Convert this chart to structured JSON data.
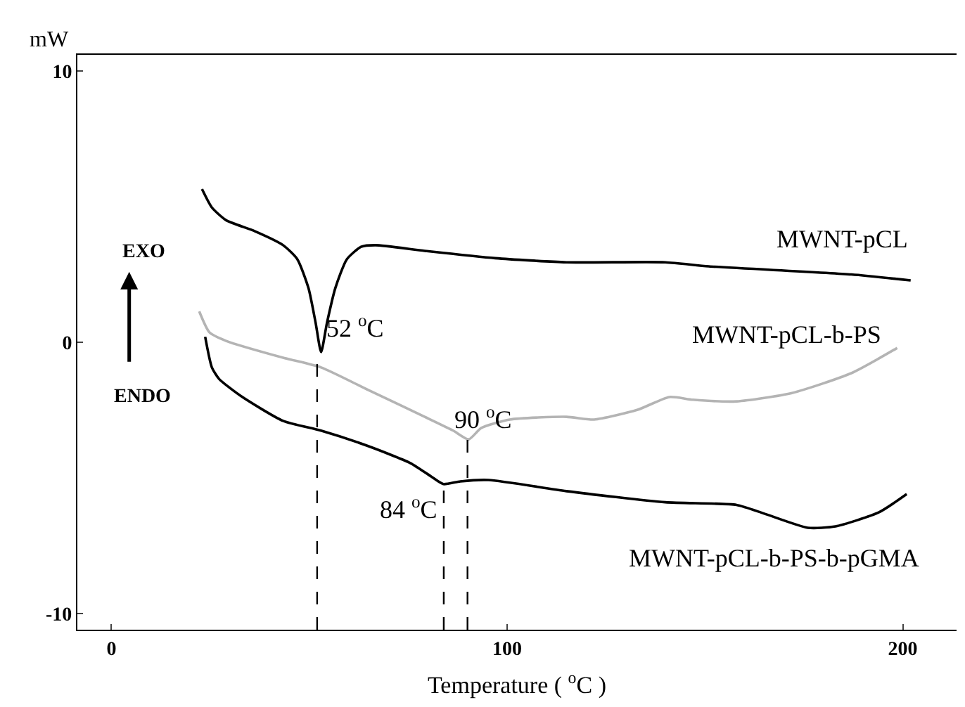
{
  "chart_data": {
    "type": "line",
    "xlabel": "Temperature ( $^{o}$C )",
    "ylabel": "mW",
    "xlim": [
      -8.6,
      213.6
    ],
    "ylim": [
      -10.6,
      10.6
    ],
    "xticks": [
      0,
      100,
      200
    ],
    "yticks": [
      -10,
      0,
      10
    ],
    "legend": false,
    "marker": "none",
    "series": [
      {
        "name": "MWNT-pCL",
        "color": "#000000",
        "x": [
          22.9,
          25.4,
          29,
          36.2,
          43.4,
          47,
          49.8,
          51.6,
          53,
          54.5,
          56.6,
          59.5,
          63.1,
          66.7,
          79.2,
          97,
          115,
          140,
          151,
          187,
          202
        ],
        "values": [
          5.65,
          4.97,
          4.5,
          4.1,
          3.58,
          3.06,
          2.0,
          0.73,
          -0.36,
          0.73,
          2.0,
          3.06,
          3.52,
          3.58,
          3.37,
          3.1,
          2.95,
          2.95,
          2.8,
          2.5,
          2.28
        ]
      },
      {
        "name": "MWNT-pCL-b-PS",
        "color": "#b4b4b4",
        "x": [
          22.2,
          24.8,
          29,
          43.4,
          53,
          64.9,
          79.2,
          86.4,
          90.3,
          93.5,
          100.7,
          115,
          122,
          133,
          141,
          147,
          158,
          172,
          187,
          198.6
        ],
        "values": [
          1.14,
          0.36,
          0.05,
          -0.57,
          -0.93,
          -1.76,
          -2.75,
          -3.26,
          -3.58,
          -3.16,
          -2.85,
          -2.75,
          -2.85,
          -2.49,
          -2.02,
          -2.12,
          -2.18,
          -1.87,
          -1.14,
          -0.21
        ]
      },
      {
        "name": "MWNT-pCL-b-PS-b-pGMA",
        "color": "#000000",
        "x": [
          23.7,
          25.4,
          27.2,
          32.6,
          43.4,
          53,
          64.9,
          75.6,
          81,
          83.9,
          88.2,
          95.3,
          115,
          140,
          158,
          165,
          176,
          183,
          194,
          201
        ],
        "values": [
          0.2,
          -0.93,
          -1.35,
          -1.97,
          -2.9,
          -3.26,
          -3.83,
          -4.46,
          -4.97,
          -5.23,
          -5.13,
          -5.08,
          -5.49,
          -5.9,
          -6.0,
          -6.32,
          -6.84,
          -6.79,
          -6.27,
          -5.6
        ]
      },
      {
        "color": "#000000",
        "line_style": "dashed",
        "x": [
          52,
          52
        ],
        "values": [
          -10.6,
          -0.36
        ]
      },
      {
        "color": "#000000",
        "line_style": "dashed",
        "x": [
          84,
          84
        ],
        "values": [
          -10.6,
          -5.23
        ]
      },
      {
        "color": "#000000",
        "line_style": "dashed",
        "x": [
          90,
          90
        ],
        "values": [
          -10.6,
          -3.58
        ]
      }
    ],
    "annotations": [
      {
        "text": "52 $^{o}$C",
        "x": 53,
        "y": -0.36
      },
      {
        "text": "90 $^{o}$C",
        "x": 90.3,
        "y": -3.58
      },
      {
        "text": "84 $^{o}$C",
        "x": 83.9,
        "y": -5.23
      },
      "EXO",
      "ENDO"
    ]
  }
}
